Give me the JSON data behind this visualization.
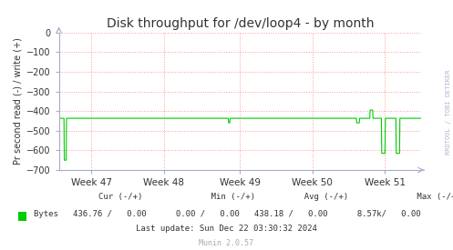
{
  "title": "Disk throughput for /dev/loop4 - by month",
  "ylabel": "Pr second read (-) / write (+)",
  "background_color": "#ffffff",
  "plot_bg_color": "#ffffff",
  "grid_color": "#ff9999",
  "line_color": "#00cc00",
  "axis_color": "#aaaacc",
  "text_color": "#333333",
  "ylim": [
    -700,
    0
  ],
  "yticks": [
    0,
    -100,
    -200,
    -300,
    -400,
    -500,
    -600,
    -700
  ],
  "x_tick_labels": [
    "Week 47",
    "Week 48",
    "Week 49",
    "Week 50",
    "Week 51"
  ],
  "x_tick_positions": [
    0.09,
    0.29,
    0.5,
    0.7,
    0.9
  ],
  "watermark": "RRDTOOL / TOBI OETIKER",
  "footer_header": "        Cur (-/+)              Min (-/+)          Avg (-/+)              Max (-/+)",
  "footer_bytes": "Bytes   436.76 /   0.00      0.00 /   0.00   438.18 /   0.00      8.57k/   0.00",
  "footer_update": "Last update: Sun Dec 22 03:30:32 2024",
  "footer_munin": "Munin 2.0.57",
  "n_points": 1000,
  "baseline_value": -436.76,
  "spike_positions": [
    0.018,
    0.47,
    0.825,
    0.862,
    0.895,
    0.935
  ],
  "spike_values": [
    -650,
    -460,
    -460,
    -395,
    -615,
    -615
  ],
  "spike_widths": [
    0.003,
    0.002,
    0.004,
    0.004,
    0.005,
    0.005
  ]
}
